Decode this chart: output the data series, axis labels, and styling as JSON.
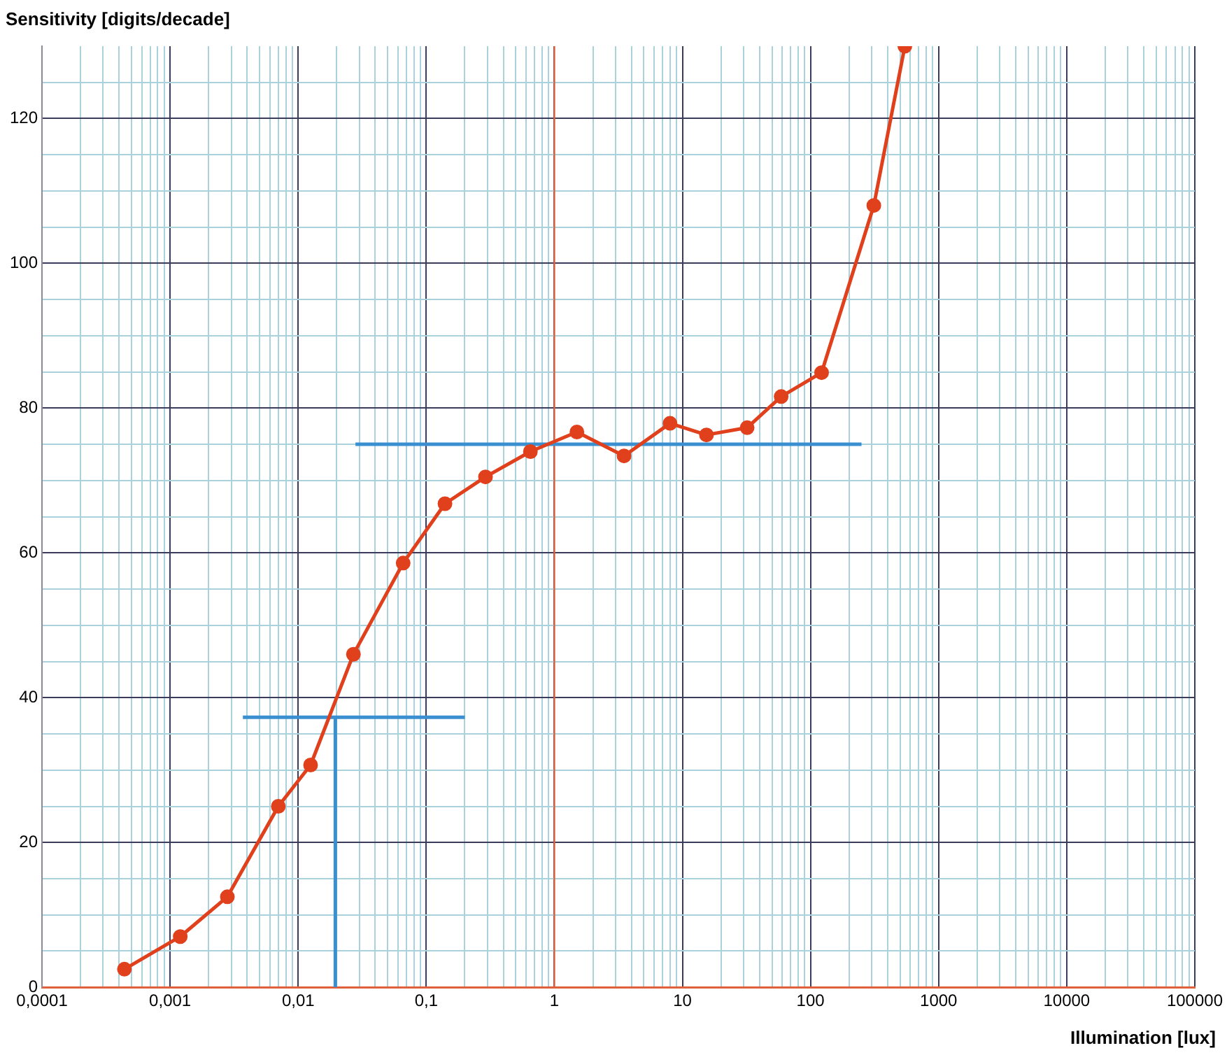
{
  "chart_data": {
    "type": "line",
    "ylabel": "Sensitivity [digits/decade]",
    "xlabel": "Illumination [lux]",
    "log": "x",
    "grid": true,
    "legend": false,
    "xlim": [
      0.0001,
      100000
    ],
    "ylim": [
      0,
      130
    ],
    "xticks": [
      {
        "value": 0.0001,
        "label": "0,0001"
      },
      {
        "value": 0.0002,
        "label": null
      },
      {
        "value": 0.0003,
        "label": null
      },
      {
        "value": 0.0004,
        "label": null
      },
      {
        "value": 0.0005,
        "label": null
      },
      {
        "value": 0.0006,
        "label": null
      },
      {
        "value": 0.0007,
        "label": null
      },
      {
        "value": 0.0008,
        "label": null
      },
      {
        "value": 0.0009,
        "label": null
      },
      {
        "value": 0.001,
        "label": "0,001"
      },
      {
        "value": 0.002,
        "label": null
      },
      {
        "value": 0.003,
        "label": null
      },
      {
        "value": 0.004,
        "label": null
      },
      {
        "value": 0.005,
        "label": null
      },
      {
        "value": 0.006,
        "label": null
      },
      {
        "value": 0.007,
        "label": null
      },
      {
        "value": 0.008,
        "label": null
      },
      {
        "value": 0.009,
        "label": null
      },
      {
        "value": 0.01,
        "label": "0,01"
      },
      {
        "value": 0.02,
        "label": null
      },
      {
        "value": 0.03,
        "label": null
      },
      {
        "value": 0.04,
        "label": null
      },
      {
        "value": 0.05,
        "label": null
      },
      {
        "value": 0.06,
        "label": null
      },
      {
        "value": 0.07,
        "label": null
      },
      {
        "value": 0.08,
        "label": null
      },
      {
        "value": 0.09,
        "label": null
      },
      {
        "value": 0.1,
        "label": "0,1"
      },
      {
        "value": 0.2,
        "label": null
      },
      {
        "value": 0.3,
        "label": null
      },
      {
        "value": 0.4,
        "label": null
      },
      {
        "value": 0.5,
        "label": null
      },
      {
        "value": 0.6,
        "label": null
      },
      {
        "value": 0.7,
        "label": null
      },
      {
        "value": 0.8,
        "label": null
      },
      {
        "value": 0.9,
        "label": null
      },
      1,
      {
        "value": 2,
        "label": null
      },
      {
        "value": 3,
        "label": null
      },
      {
        "value": 4,
        "label": null
      },
      {
        "value": 5,
        "label": null
      },
      {
        "value": 6,
        "label": null
      },
      {
        "value": 7,
        "label": null
      },
      {
        "value": 8,
        "label": null
      },
      {
        "value": 9,
        "label": null
      },
      10,
      {
        "value": 20,
        "label": null
      },
      {
        "value": 30,
        "label": null
      },
      {
        "value": 40,
        "label": null
      },
      {
        "value": 50,
        "label": null
      },
      {
        "value": 60,
        "label": null
      },
      {
        "value": 70,
        "label": null
      },
      {
        "value": 80,
        "label": null
      },
      {
        "value": 90,
        "label": null
      },
      100,
      {
        "value": 200,
        "label": null
      },
      {
        "value": 300,
        "label": null
      },
      {
        "value": 400,
        "label": null
      },
      {
        "value": 500,
        "label": null
      },
      {
        "value": 600,
        "label": null
      },
      {
        "value": 700,
        "label": null
      },
      {
        "value": 800,
        "label": null
      },
      {
        "value": 900,
        "label": null
      },
      1000,
      {
        "value": 2000,
        "label": null
      },
      {
        "value": 3000,
        "label": null
      },
      {
        "value": 4000,
        "label": null
      },
      {
        "value": 5000,
        "label": null
      },
      {
        "value": 6000,
        "label": null
      },
      {
        "value": 7000,
        "label": null
      },
      {
        "value": 8000,
        "label": null
      },
      {
        "value": 9000,
        "label": null
      },
      10000,
      {
        "value": 20000,
        "label": null
      },
      {
        "value": 30000,
        "label": null
      },
      {
        "value": 40000,
        "label": null
      },
      {
        "value": 50000,
        "label": null
      },
      {
        "value": 60000,
        "label": null
      },
      {
        "value": 70000,
        "label": null
      },
      {
        "value": 80000,
        "label": null
      },
      {
        "value": 90000,
        "label": null
      },
      100000
    ],
    "yticks": [
      0,
      {
        "value": 5,
        "label": null
      },
      {
        "value": 10,
        "label": null
      },
      {
        "value": 15,
        "label": null
      },
      20,
      {
        "value": 25,
        "label": null
      },
      {
        "value": 30,
        "label": null
      },
      {
        "value": 35,
        "label": null
      },
      40,
      {
        "value": 45,
        "label": null
      },
      {
        "value": 50,
        "label": null
      },
      {
        "value": 55,
        "label": null
      },
      60,
      {
        "value": 65,
        "label": null
      },
      {
        "value": 70,
        "label": null
      },
      {
        "value": 75,
        "label": null
      },
      80,
      {
        "value": 85,
        "label": null
      },
      {
        "value": 90,
        "label": null
      },
      {
        "value": 95,
        "label": null
      },
      100,
      {
        "value": 105,
        "label": null
      },
      {
        "value": 110,
        "label": null
      },
      {
        "value": 115,
        "label": null
      },
      120,
      {
        "value": 125,
        "label": null
      }
    ],
    "ref_lines": [
      {
        "axis": "x",
        "value": 1,
        "color": "#e0603c"
      }
    ],
    "series": [
      {
        "color": "#e0401c",
        "marker": "circle",
        "x": [
          0.00044,
          0.0012,
          0.0028,
          0.007,
          0.0125,
          0.027,
          0.066,
          0.14,
          0.29,
          0.65,
          1.5,
          3.5,
          8,
          15.4,
          32,
          59,
          122,
          312,
          545
        ],
        "values": [
          2.5,
          7,
          12.5,
          25,
          30.7,
          46,
          58.6,
          66.8,
          70.5,
          74,
          76.7,
          73.4,
          77.9,
          76.3,
          77.3,
          81.6,
          84.9,
          108,
          130
        ]
      },
      {
        "color": "#3a8fd0",
        "marker": "none",
        "x": [
          0.028,
          250
        ],
        "values": [
          75,
          75
        ]
      },
      {
        "color": "#3a8fd0",
        "marker": "none",
        "x": [
          0.0037,
          0.2
        ],
        "values": [
          37.3,
          37.3
        ]
      },
      {
        "color": "#3a8fd0",
        "marker": "none",
        "x": [
          0.0195,
          0.0195
        ],
        "values": [
          0,
          37.3
        ]
      }
    ]
  }
}
